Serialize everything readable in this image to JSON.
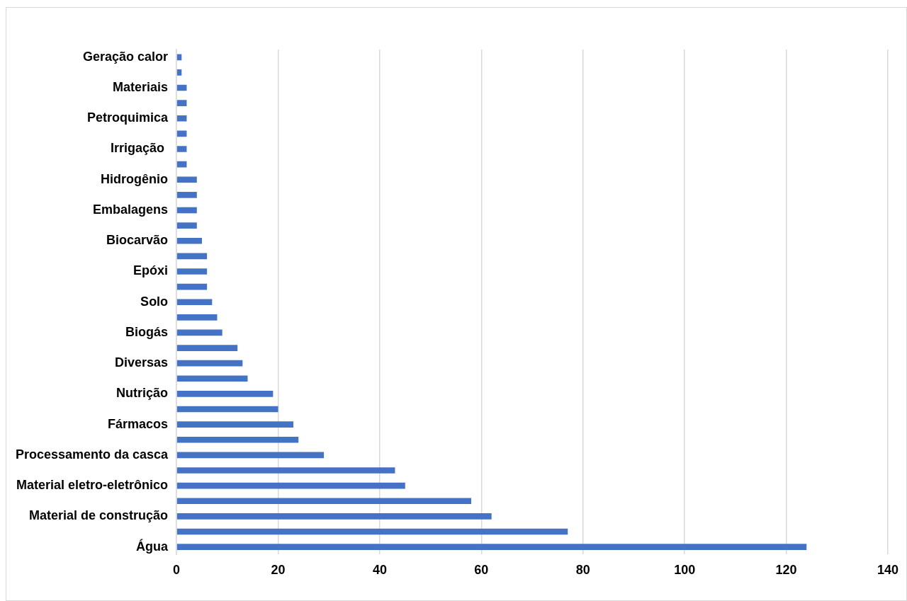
{
  "chart_data": {
    "type": "bar",
    "orientation": "horizontal",
    "categories": [
      "Geração calor",
      null,
      "Materiais",
      null,
      "Petroquimica",
      null,
      "Irrigação ",
      null,
      "Hidrogênio",
      null,
      "Embalagens",
      null,
      "Biocarvão",
      null,
      "Epóxi",
      null,
      "Solo",
      null,
      "Biogás",
      null,
      "Diversas",
      null,
      "Nutrição",
      null,
      "Fármacos",
      null,
      "Processamento da casca",
      null,
      "Material eletro-eletrônico",
      null,
      "Material de construção",
      null,
      "Água"
    ],
    "values": [
      1,
      1,
      2,
      2,
      2,
      2,
      2,
      2,
      4,
      4,
      4,
      4,
      5,
      6,
      6,
      6,
      7,
      8,
      9,
      12,
      13,
      14,
      19,
      20,
      23,
      24,
      29,
      43,
      45,
      58,
      62,
      77,
      124
    ],
    "color": "#4472c4",
    "xlim": [
      0,
      140
    ],
    "xticks": [
      0,
      20,
      40,
      60,
      80,
      100,
      120,
      140
    ],
    "grid": "x",
    "legend": false
  }
}
